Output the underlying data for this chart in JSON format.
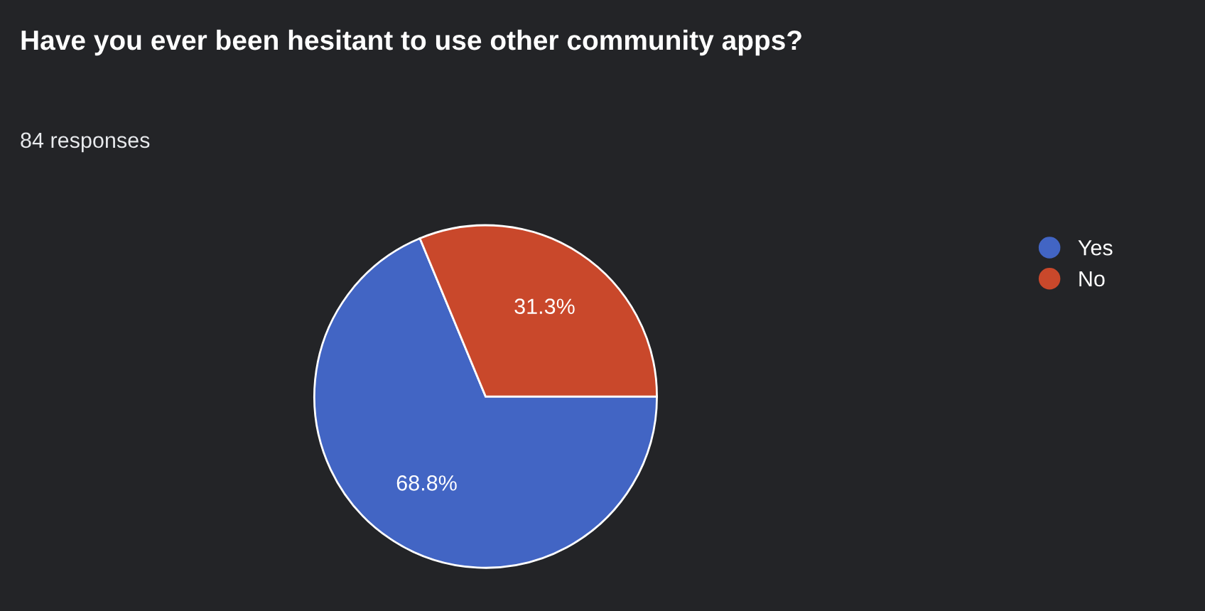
{
  "chart_data": {
    "type": "pie",
    "title": "Have you ever been hesitant to use other community apps?",
    "subtitle": "84 responses",
    "categories": [
      "Yes",
      "No"
    ],
    "values": [
      68.8,
      31.3
    ],
    "colors": [
      "#4265c4",
      "#c9482b"
    ],
    "value_labels": [
      "68.8%",
      "31.3%"
    ],
    "legend": "top right"
  }
}
